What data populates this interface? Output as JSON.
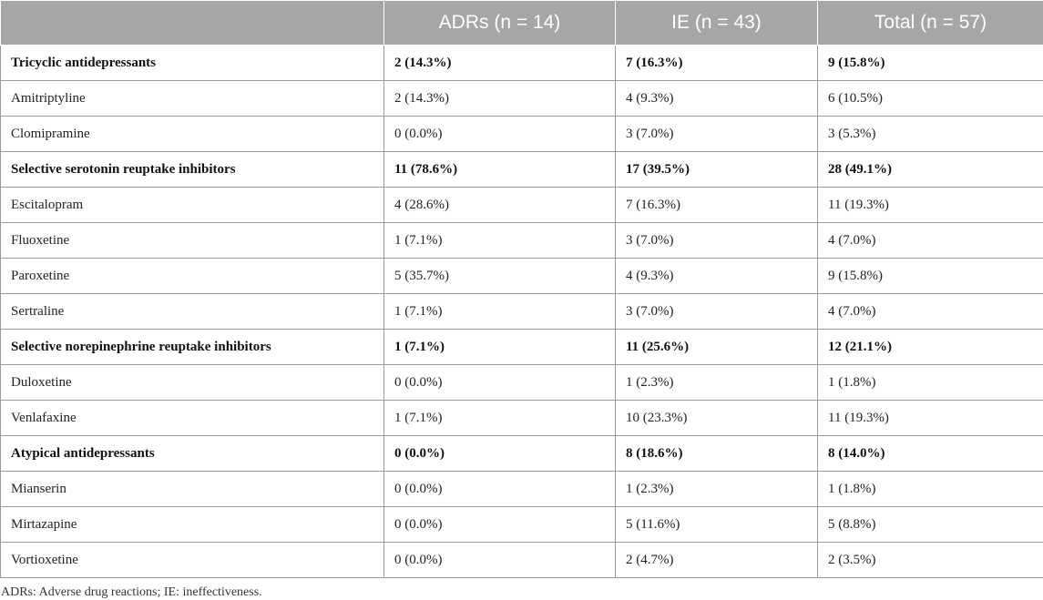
{
  "table": {
    "headers": [
      "",
      "ADRs (n = 14)",
      "IE (n = 43)",
      "Total (n = 57)"
    ],
    "rows": [
      {
        "label": "Tricyclic antidepressants",
        "adrs": "2 (14.3%)",
        "ie": "7 (16.3%)",
        "total": "9 (15.8%)",
        "group": true
      },
      {
        "label": "Amitriptyline",
        "adrs": "2 (14.3%)",
        "ie": "4 (9.3%)",
        "total": "6 (10.5%)",
        "group": false
      },
      {
        "label": "Clomipramine",
        "adrs": "0 (0.0%)",
        "ie": "3 (7.0%)",
        "total": "3 (5.3%)",
        "group": false
      },
      {
        "label": "Selective serotonin reuptake inhibitors",
        "adrs": "11 (78.6%)",
        "ie": "17 (39.5%)",
        "total": "28 (49.1%)",
        "group": true
      },
      {
        "label": "Escitalopram",
        "adrs": "4 (28.6%)",
        "ie": "7 (16.3%)",
        "total": "11 (19.3%)",
        "group": false
      },
      {
        "label": "Fluoxetine",
        "adrs": "1 (7.1%)",
        "ie": "3 (7.0%)",
        "total": "4 (7.0%)",
        "group": false
      },
      {
        "label": "Paroxetine",
        "adrs": "5 (35.7%)",
        "ie": "4 (9.3%)",
        "total": "9 (15.8%)",
        "group": false
      },
      {
        "label": "Sertraline",
        "adrs": "1 (7.1%)",
        "ie": "3 (7.0%)",
        "total": "4 (7.0%)",
        "group": false
      },
      {
        "label": "Selective norepinephrine reuptake inhibitors",
        "adrs": "1 (7.1%)",
        "ie": "11 (25.6%)",
        "total": "12 (21.1%)",
        "group": true
      },
      {
        "label": "Duloxetine",
        "adrs": "0 (0.0%)",
        "ie": "1 (2.3%)",
        "total": "1 (1.8%)",
        "group": false
      },
      {
        "label": "Venlafaxine",
        "adrs": "1 (7.1%)",
        "ie": "10 (23.3%)",
        "total": "11 (19.3%)",
        "group": false
      },
      {
        "label": "Atypical antidepressants",
        "adrs": "0 (0.0%)",
        "ie": "8 (18.6%)",
        "total": "8 (14.0%)",
        "group": true
      },
      {
        "label": "Mianserin",
        "adrs": "0 (0.0%)",
        "ie": "1 (2.3%)",
        "total": "1 (1.8%)",
        "group": false
      },
      {
        "label": "Mirtazapine",
        "adrs": "0 (0.0%)",
        "ie": "5 (11.6%)",
        "total": "5 (8.8%)",
        "group": false
      },
      {
        "label": "Vortioxetine",
        "adrs": "0 (0.0%)",
        "ie": "2 (4.7%)",
        "total": "2 (3.5%)",
        "group": false
      }
    ]
  },
  "footnote": "ADRs: Adverse drug reactions; IE: ineffectiveness.",
  "colors": {
    "header_bg": "#a6a6a6",
    "header_text": "#ffffff",
    "border": "#9a9a9a"
  }
}
